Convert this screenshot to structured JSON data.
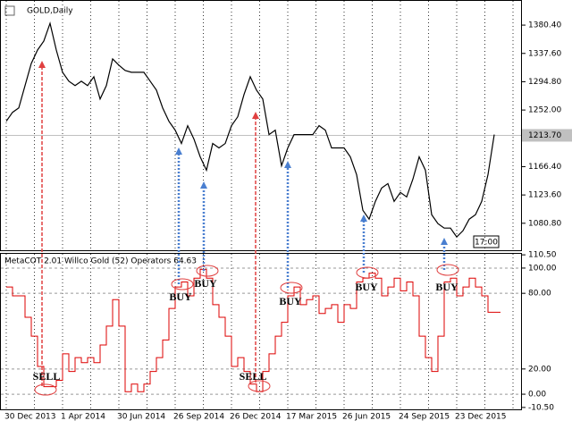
{
  "chart_data": [
    {
      "type": "line",
      "title": "GOLD,Daily",
      "time_label": "17:00",
      "color": "#000000",
      "categories": [
        "30 Dec 2013",
        null,
        null,
        null,
        null,
        null,
        null,
        null,
        null,
        "1 Apr 2014",
        null,
        null,
        null,
        null,
        null,
        null,
        null,
        null,
        "30 Jun 2014",
        null,
        null,
        null,
        null,
        null,
        null,
        null,
        null,
        "26 Sep 2014",
        null,
        null,
        null,
        null,
        null,
        null,
        null,
        null,
        "26 Dec 2014",
        null,
        null,
        null,
        null,
        null,
        null,
        null,
        null,
        "17 Mar 2015",
        null,
        null,
        null,
        null,
        null,
        null,
        null,
        null,
        "26 Jun 2015",
        null,
        null,
        null,
        null,
        null,
        null,
        null,
        null,
        "24 Sep 2015",
        null,
        null,
        null,
        null,
        null,
        null,
        null,
        null,
        "23 Dec 2015",
        null,
        null,
        null,
        null,
        null,
        null
      ],
      "values": [
        1235.0,
        1248.5,
        1255.2,
        1288.9,
        1322.5,
        1342.7,
        1356.2,
        1383.1,
        1342.7,
        1309.1,
        1295.6,
        1288.9,
        1295.6,
        1288.9,
        1302.3,
        1268.7,
        1288.9,
        1329.3,
        1319.8,
        1311.8,
        1309.1,
        1309.1,
        1309.1,
        1295.6,
        1282.1,
        1255.2,
        1235.0,
        1221.6,
        1201.4,
        1228.3,
        1208.1,
        1181.2,
        1161.0,
        1201.4,
        1194.7,
        1201.4,
        1228.3,
        1241.8,
        1275.4,
        1302.3,
        1282.1,
        1268.7,
        1214.9,
        1221.6,
        1167.7,
        1194.7,
        1214.9,
        1214.9,
        1214.9,
        1214.9,
        1228.3,
        1221.6,
        1194.7,
        1194.7,
        1194.7,
        1181.2,
        1154.3,
        1100.4,
        1087.0,
        1113.9,
        1134.1,
        1140.8,
        1113.9,
        1127.4,
        1120.6,
        1147.6,
        1181.2,
        1161.0,
        1093.7,
        1080.3,
        1073.5,
        1073.5,
        1060.1,
        1069.5,
        1087.0,
        1093.7,
        1113.9,
        1154.3,
        1214.9
      ],
      "last_price": {
        "value": 1213.7,
        "label": "1213.70"
      },
      "ylim": [
        1040,
        1417
      ],
      "yticks": [
        {
          "value": 1380.4,
          "label": "1380.40"
        },
        {
          "value": 1337.6,
          "label": "1337.60"
        },
        {
          "value": 1294.8,
          "label": "1294.80"
        },
        {
          "value": 1252,
          "label": "1252.00"
        },
        {
          "value": 1166.4,
          "label": "1166.40"
        },
        {
          "value": 1123.6,
          "label": "1123.60"
        },
        {
          "value": 1080.8,
          "label": "1080.80"
        }
      ]
    },
    {
      "type": "step",
      "title": "MetaCOT 2.01 Willco Gold (52) Operators 64.63",
      "color": "#dd0000",
      "values": [
        85,
        78,
        78,
        61,
        46,
        22,
        6,
        6,
        11,
        32,
        18,
        29,
        25,
        29,
        25,
        39,
        54,
        75,
        54,
        2,
        8,
        2,
        8,
        18,
        29,
        43,
        68,
        85,
        89,
        78,
        92,
        99,
        92,
        71,
        61,
        46,
        22,
        29,
        18,
        8,
        2,
        18,
        32,
        46,
        57,
        78,
        85,
        71,
        75,
        78,
        64,
        68,
        71,
        57,
        71,
        68,
        89,
        92,
        96,
        92,
        78,
        85,
        92,
        82,
        89,
        78,
        46,
        29,
        18,
        46,
        89,
        92,
        78,
        85,
        92,
        85,
        78,
        65,
        65
      ],
      "ylim": [
        -12,
        111.3
      ],
      "yticks": [
        {
          "value": 110.5,
          "label": "110.50"
        },
        {
          "value": 100,
          "label": "100.00"
        },
        {
          "value": 80,
          "label": "80.00"
        },
        {
          "value": 20,
          "label": "20.00"
        },
        {
          "value": 0,
          "label": "0.00"
        },
        {
          "value": -10.5,
          "label": "-10.50"
        }
      ],
      "levels": [
        100,
        80,
        20,
        0
      ],
      "annotations": [
        "SELL",
        "BUY",
        "BUY",
        "SELL",
        "BUY",
        "BUY",
        "BUY"
      ]
    }
  ]
}
